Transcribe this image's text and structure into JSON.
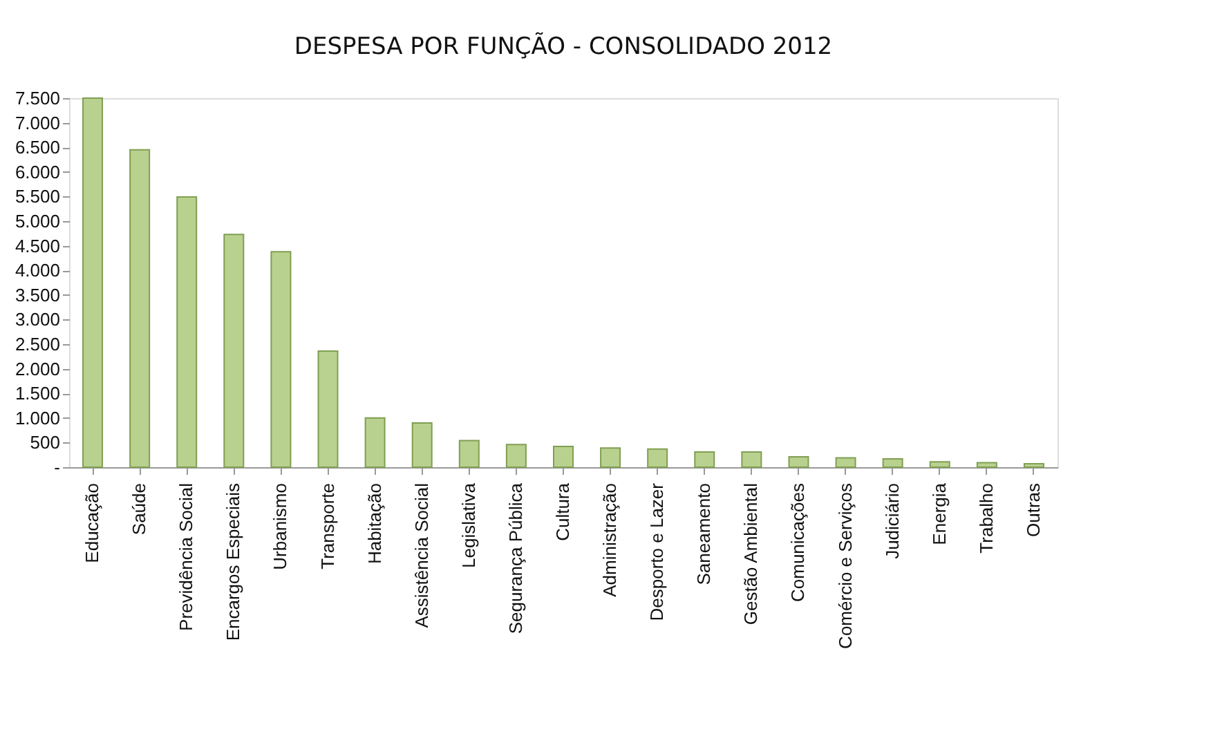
{
  "chart_data": {
    "type": "bar",
    "title": "DESPESA POR FUNÇÃO - CONSOLIDADO 2012",
    "categories": [
      "Educação",
      "Saúde",
      "Previdência Social",
      "Encargos Especiais",
      "Urbanismo",
      "Transporte",
      "Habitação",
      "Assistência Social",
      "Legislativa",
      "Segurança Pública",
      "Cultura",
      "Administração",
      "Desporto e Lazer",
      "Saneamento",
      "Gestão Ambiental",
      "Comunicações",
      "Comércio e Serviços",
      "Judiciário",
      "Energia",
      "Trabalho",
      "Outras"
    ],
    "values": [
      7500,
      6450,
      5490,
      4730,
      4380,
      2360,
      1000,
      900,
      540,
      460,
      420,
      390,
      370,
      310,
      310,
      210,
      190,
      170,
      110,
      90,
      70
    ],
    "color": "#b9d18f",
    "ylim": [
      0,
      7500
    ],
    "yticks": [
      {
        "value": 0,
        "label": "-"
      },
      {
        "value": 500,
        "label": "500"
      },
      {
        "value": 1000,
        "label": "1.000"
      },
      {
        "value": 1500,
        "label": "1.500"
      },
      {
        "value": 2000,
        "label": "2.000"
      },
      {
        "value": 2500,
        "label": "2.500"
      },
      {
        "value": 3000,
        "label": "3.000"
      },
      {
        "value": 3500,
        "label": "3.500"
      },
      {
        "value": 4000,
        "label": "4.000"
      },
      {
        "value": 4500,
        "label": "4.500"
      },
      {
        "value": 5000,
        "label": "5.000"
      },
      {
        "value": 5500,
        "label": "5.500"
      },
      {
        "value": 6000,
        "label": "6.000"
      },
      {
        "value": 6500,
        "label": "6.500"
      },
      {
        "value": 7000,
        "label": "7.000"
      },
      {
        "value": 7500,
        "label": "7.500"
      }
    ],
    "grid": false
  }
}
